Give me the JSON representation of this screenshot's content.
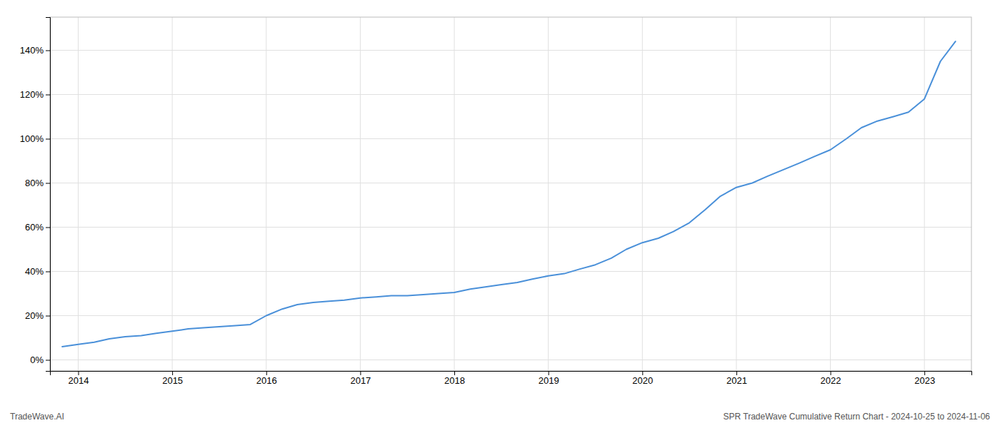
{
  "chart_data": {
    "type": "line",
    "title": "SPR TradeWave Cumulative Return Chart - 2024-10-25 to 2024-11-06",
    "annotations": [
      "TradeWave.AI"
    ],
    "x": [
      2013.83,
      2014.0,
      2014.17,
      2014.33,
      2014.5,
      2014.67,
      2014.83,
      2015.0,
      2015.17,
      2015.33,
      2015.5,
      2015.67,
      2015.83,
      2016.0,
      2016.17,
      2016.33,
      2016.5,
      2016.67,
      2016.83,
      2017.0,
      2017.17,
      2017.33,
      2017.5,
      2017.67,
      2017.83,
      2018.0,
      2018.17,
      2018.33,
      2018.5,
      2018.67,
      2018.83,
      2019.0,
      2019.17,
      2019.33,
      2019.5,
      2019.67,
      2019.83,
      2020.0,
      2020.17,
      2020.33,
      2020.5,
      2020.67,
      2020.83,
      2021.0,
      2021.17,
      2021.33,
      2021.5,
      2021.67,
      2021.83,
      2022.0,
      2022.17,
      2022.33,
      2022.5,
      2022.67,
      2022.83,
      2023.0,
      2023.17,
      2023.33
    ],
    "values": [
      6,
      7,
      8,
      9.5,
      10.5,
      11,
      12,
      13,
      14,
      14.5,
      15,
      15.5,
      16,
      20,
      23,
      25,
      26,
      26.5,
      27,
      28,
      28.5,
      29,
      29,
      29.5,
      30,
      30.5,
      32,
      33,
      34,
      35,
      36.5,
      38,
      39,
      41,
      43,
      46,
      50,
      53,
      55,
      58,
      62,
      68,
      74,
      78,
      80,
      83,
      86,
      89,
      92,
      95,
      100,
      105,
      108,
      110,
      112,
      118,
      135,
      144
    ],
    "color": "#4a90d9",
    "xlim": [
      2013.7,
      2023.5
    ],
    "xticks": [
      2014,
      2015,
      2016,
      2017,
      2018,
      2019,
      2020,
      2021,
      2022,
      2023
    ],
    "ylim": [
      -5,
      155
    ],
    "yticks": [
      {
        "value": 0,
        "label": "0%"
      },
      {
        "value": 20,
        "label": "20%"
      },
      {
        "value": 40,
        "label": "40%"
      },
      {
        "value": 60,
        "label": "60%"
      },
      {
        "value": 80,
        "label": "80%"
      },
      {
        "value": 100,
        "label": "100%"
      },
      {
        "value": 120,
        "label": "120%"
      },
      {
        "value": 140,
        "label": "140%"
      }
    ],
    "grid": true
  }
}
